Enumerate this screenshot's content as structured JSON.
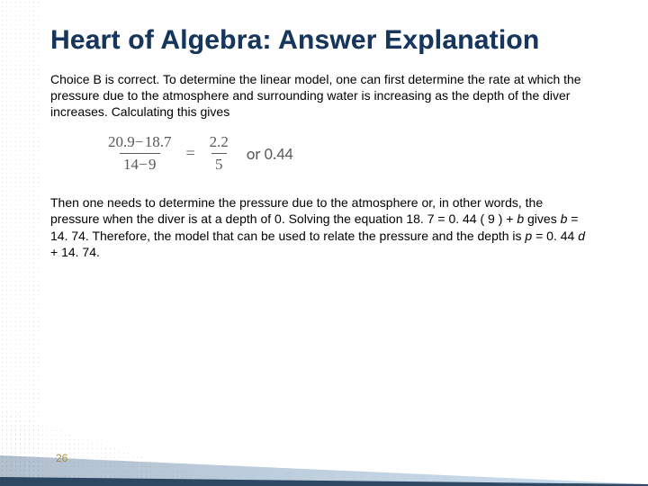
{
  "title": "Heart of Algebra: Answer Explanation",
  "paragraph1": "Choice B is correct. To determine the linear model, one can first determine the rate at which the pressure due to the atmosphere and surrounding water is increasing as the depth of the diver increases. Calculating this gives",
  "equation": {
    "left_num": "20.9− 18.7",
    "left_den": "14− 9",
    "right_num": "2.2",
    "right_den": "5",
    "or_label": "or 0.44"
  },
  "paragraph2_parts": {
    "a": "Then one needs to determine the pressure due to the atmosphere or, in other words, the pressure when the diver is at a depth of 0. Solving the equation 18. 7 = 0. 44 ( 9 ) + ",
    "b_italic": "b",
    "c": " gives ",
    "b2_italic": "b",
    "d": " = 14. 74. Therefore, the model that can be used to relate the pressure and the depth is ",
    "p_italic": "p",
    "e": " = 0. 44 ",
    "d_italic": "d",
    "f": " + 14. 74."
  },
  "page_number": "26",
  "colors": {
    "title": "#16365d",
    "eq_text": "#595959",
    "page_num": "#a98f3a"
  }
}
